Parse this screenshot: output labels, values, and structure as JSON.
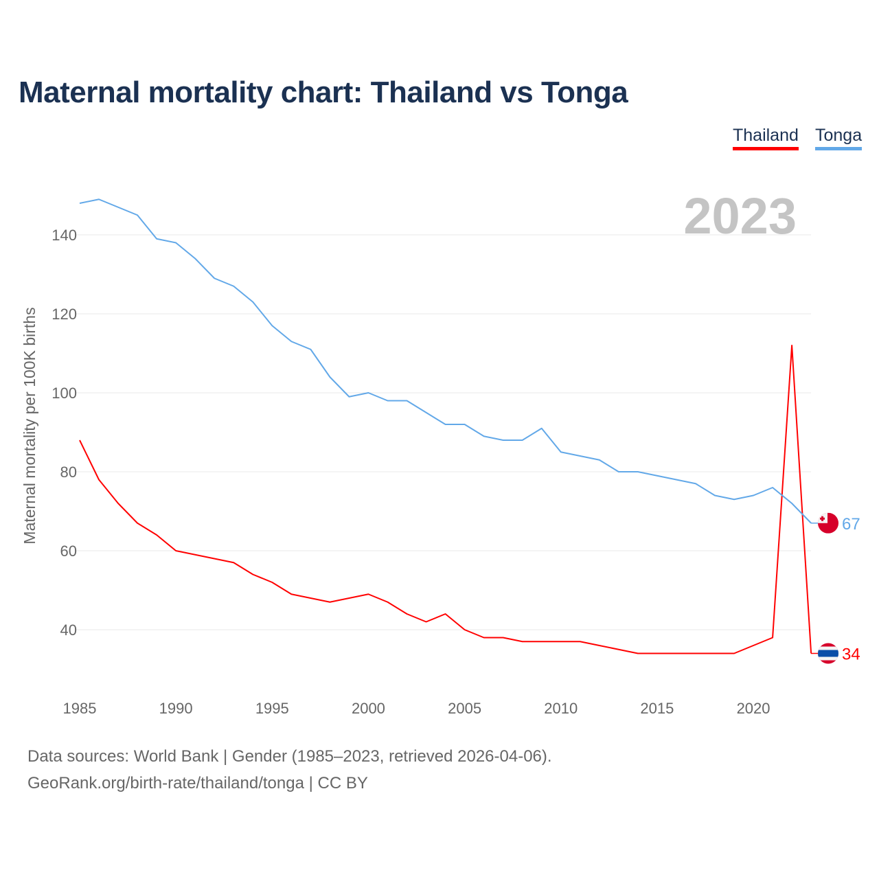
{
  "title": "Maternal mortality chart: Thailand vs Tonga",
  "footer": {
    "line1": "Data sources: World Bank | Gender (1985–2023, retrieved 2026-04-06).",
    "line2": "GeoRank.org/birth-rate/thailand/tonga | CC BY"
  },
  "chart_data": {
    "type": "line",
    "title": "Maternal mortality chart: Thailand vs Tonga",
    "xlabel": "",
    "ylabel": "Maternal mortality per 100K births",
    "year_label": "2023",
    "xlim": [
      1985,
      2023
    ],
    "ylim": [
      30,
      150
    ],
    "x_ticks": [
      "1985",
      "1990",
      "1995",
      "2000",
      "2005",
      "2010",
      "2015",
      "2020"
    ],
    "y_ticks": [
      "40",
      "60",
      "80",
      "100",
      "120",
      "140"
    ],
    "grid": true,
    "legend_position": "top-right",
    "x": [
      1985,
      1986,
      1987,
      1988,
      1989,
      1990,
      1991,
      1992,
      1993,
      1994,
      1995,
      1996,
      1997,
      1998,
      1999,
      2000,
      2001,
      2002,
      2003,
      2004,
      2005,
      2006,
      2007,
      2008,
      2009,
      2010,
      2011,
      2012,
      2013,
      2014,
      2015,
      2016,
      2017,
      2018,
      2019,
      2020,
      2021,
      2022,
      2023
    ],
    "series": [
      {
        "name": "Thailand",
        "color": "#ff0000",
        "end_label": "34",
        "values": [
          88,
          78,
          72,
          67,
          64,
          60,
          59,
          58,
          57,
          54,
          52,
          49,
          48,
          47,
          48,
          49,
          47,
          44,
          42,
          44,
          40,
          38,
          38,
          37,
          37,
          37,
          37,
          36,
          35,
          34,
          34,
          34,
          34,
          34,
          34,
          36,
          38,
          112,
          34
        ]
      },
      {
        "name": "Tonga",
        "color": "#62a8e8",
        "end_label": "67",
        "values": [
          148,
          149,
          147,
          145,
          139,
          138,
          134,
          129,
          127,
          123,
          117,
          113,
          111,
          104,
          99,
          100,
          98,
          98,
          95,
          92,
          92,
          89,
          88,
          88,
          91,
          85,
          84,
          83,
          80,
          80,
          79,
          78,
          77,
          74,
          73,
          74,
          76,
          72,
          67
        ]
      }
    ]
  }
}
